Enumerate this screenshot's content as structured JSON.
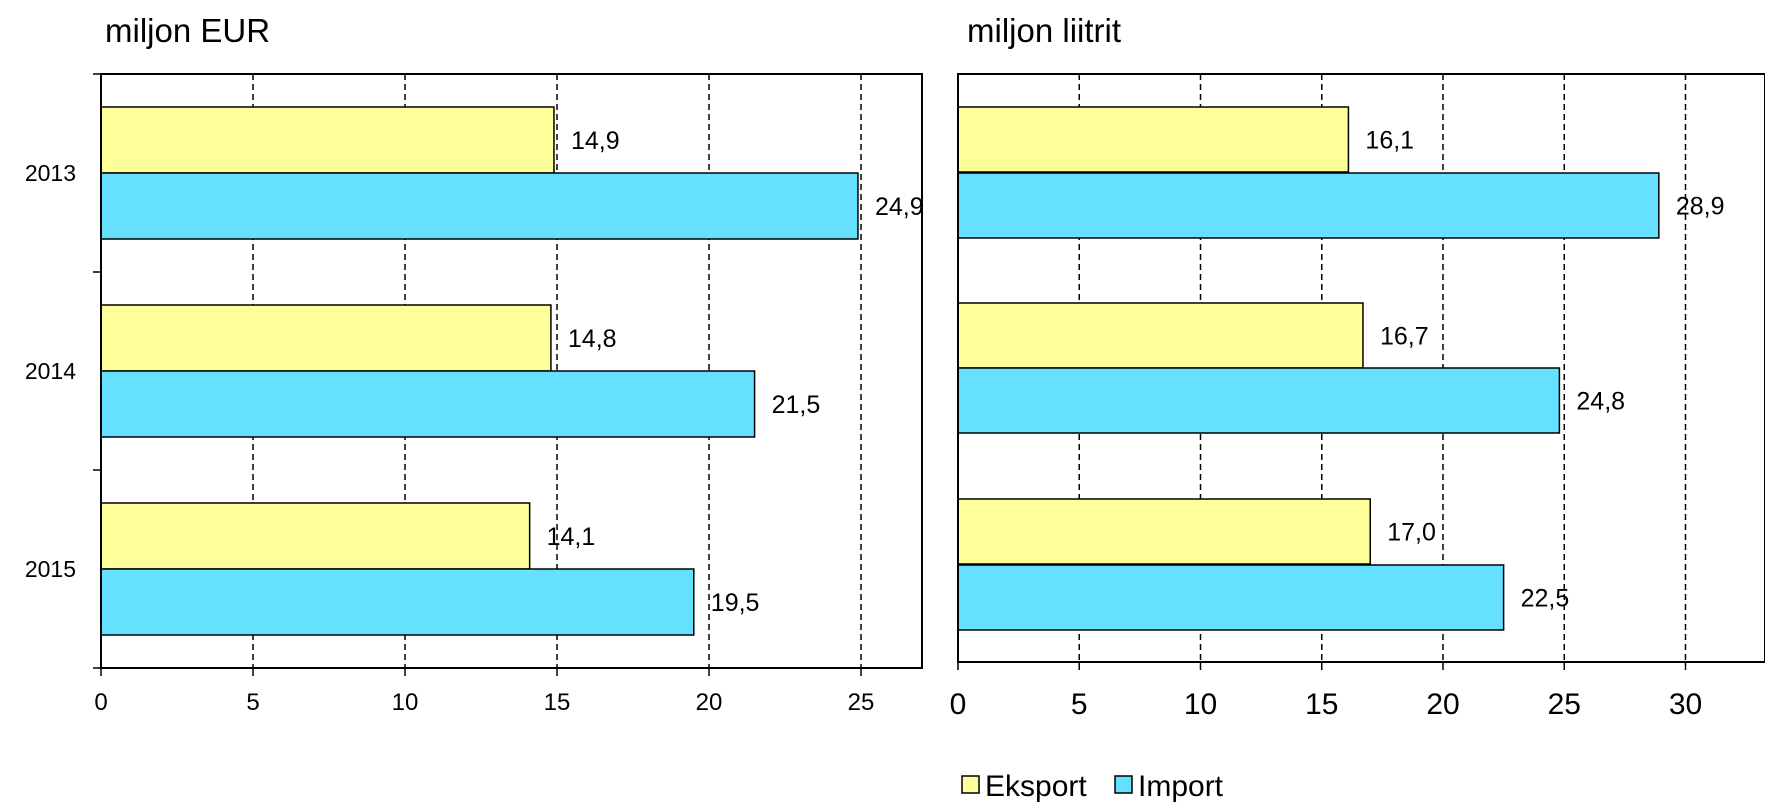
{
  "colors": {
    "eksport": "#ffff99",
    "import": "#66e0ff"
  },
  "legend": [
    {
      "key": "eksport",
      "name": "Eksport"
    },
    {
      "key": "import",
      "name": "Import"
    }
  ],
  "chart_data": [
    {
      "type": "bar",
      "orientation": "horizontal",
      "title": "miljon EUR",
      "categories": [
        "2013",
        "2014",
        "2015"
      ],
      "series": [
        {
          "name": "Eksport",
          "values": [
            14.9,
            14.8,
            14.1
          ],
          "labels": [
            "14,9",
            "14,8",
            "14,1"
          ]
        },
        {
          "name": "Import",
          "values": [
            24.9,
            21.5,
            19.5
          ],
          "labels": [
            "24,9",
            "21,5",
            "19,5"
          ]
        }
      ],
      "xlim": [
        0,
        27
      ],
      "xticks": [
        0,
        5,
        10,
        15,
        20,
        25
      ],
      "grid": "vertical dashed",
      "show_category_labels": true
    },
    {
      "type": "bar",
      "orientation": "horizontal",
      "title": "miljon liitrit",
      "categories": [
        "2013",
        "2014",
        "2015"
      ],
      "series": [
        {
          "name": "Eksport",
          "values": [
            16.1,
            16.7,
            17.0
          ],
          "labels": [
            "16,1",
            "16,7",
            "17,0"
          ]
        },
        {
          "name": "Import",
          "values": [
            28.9,
            24.8,
            22.5
          ],
          "labels": [
            "28,9",
            "24,8",
            "22,5"
          ]
        }
      ],
      "xlim": [
        0,
        33
      ],
      "xticks": [
        0,
        5,
        10,
        15,
        20,
        25,
        30
      ],
      "grid": "vertical dashed",
      "show_category_labels": false,
      "legend_position": "bottom"
    }
  ]
}
